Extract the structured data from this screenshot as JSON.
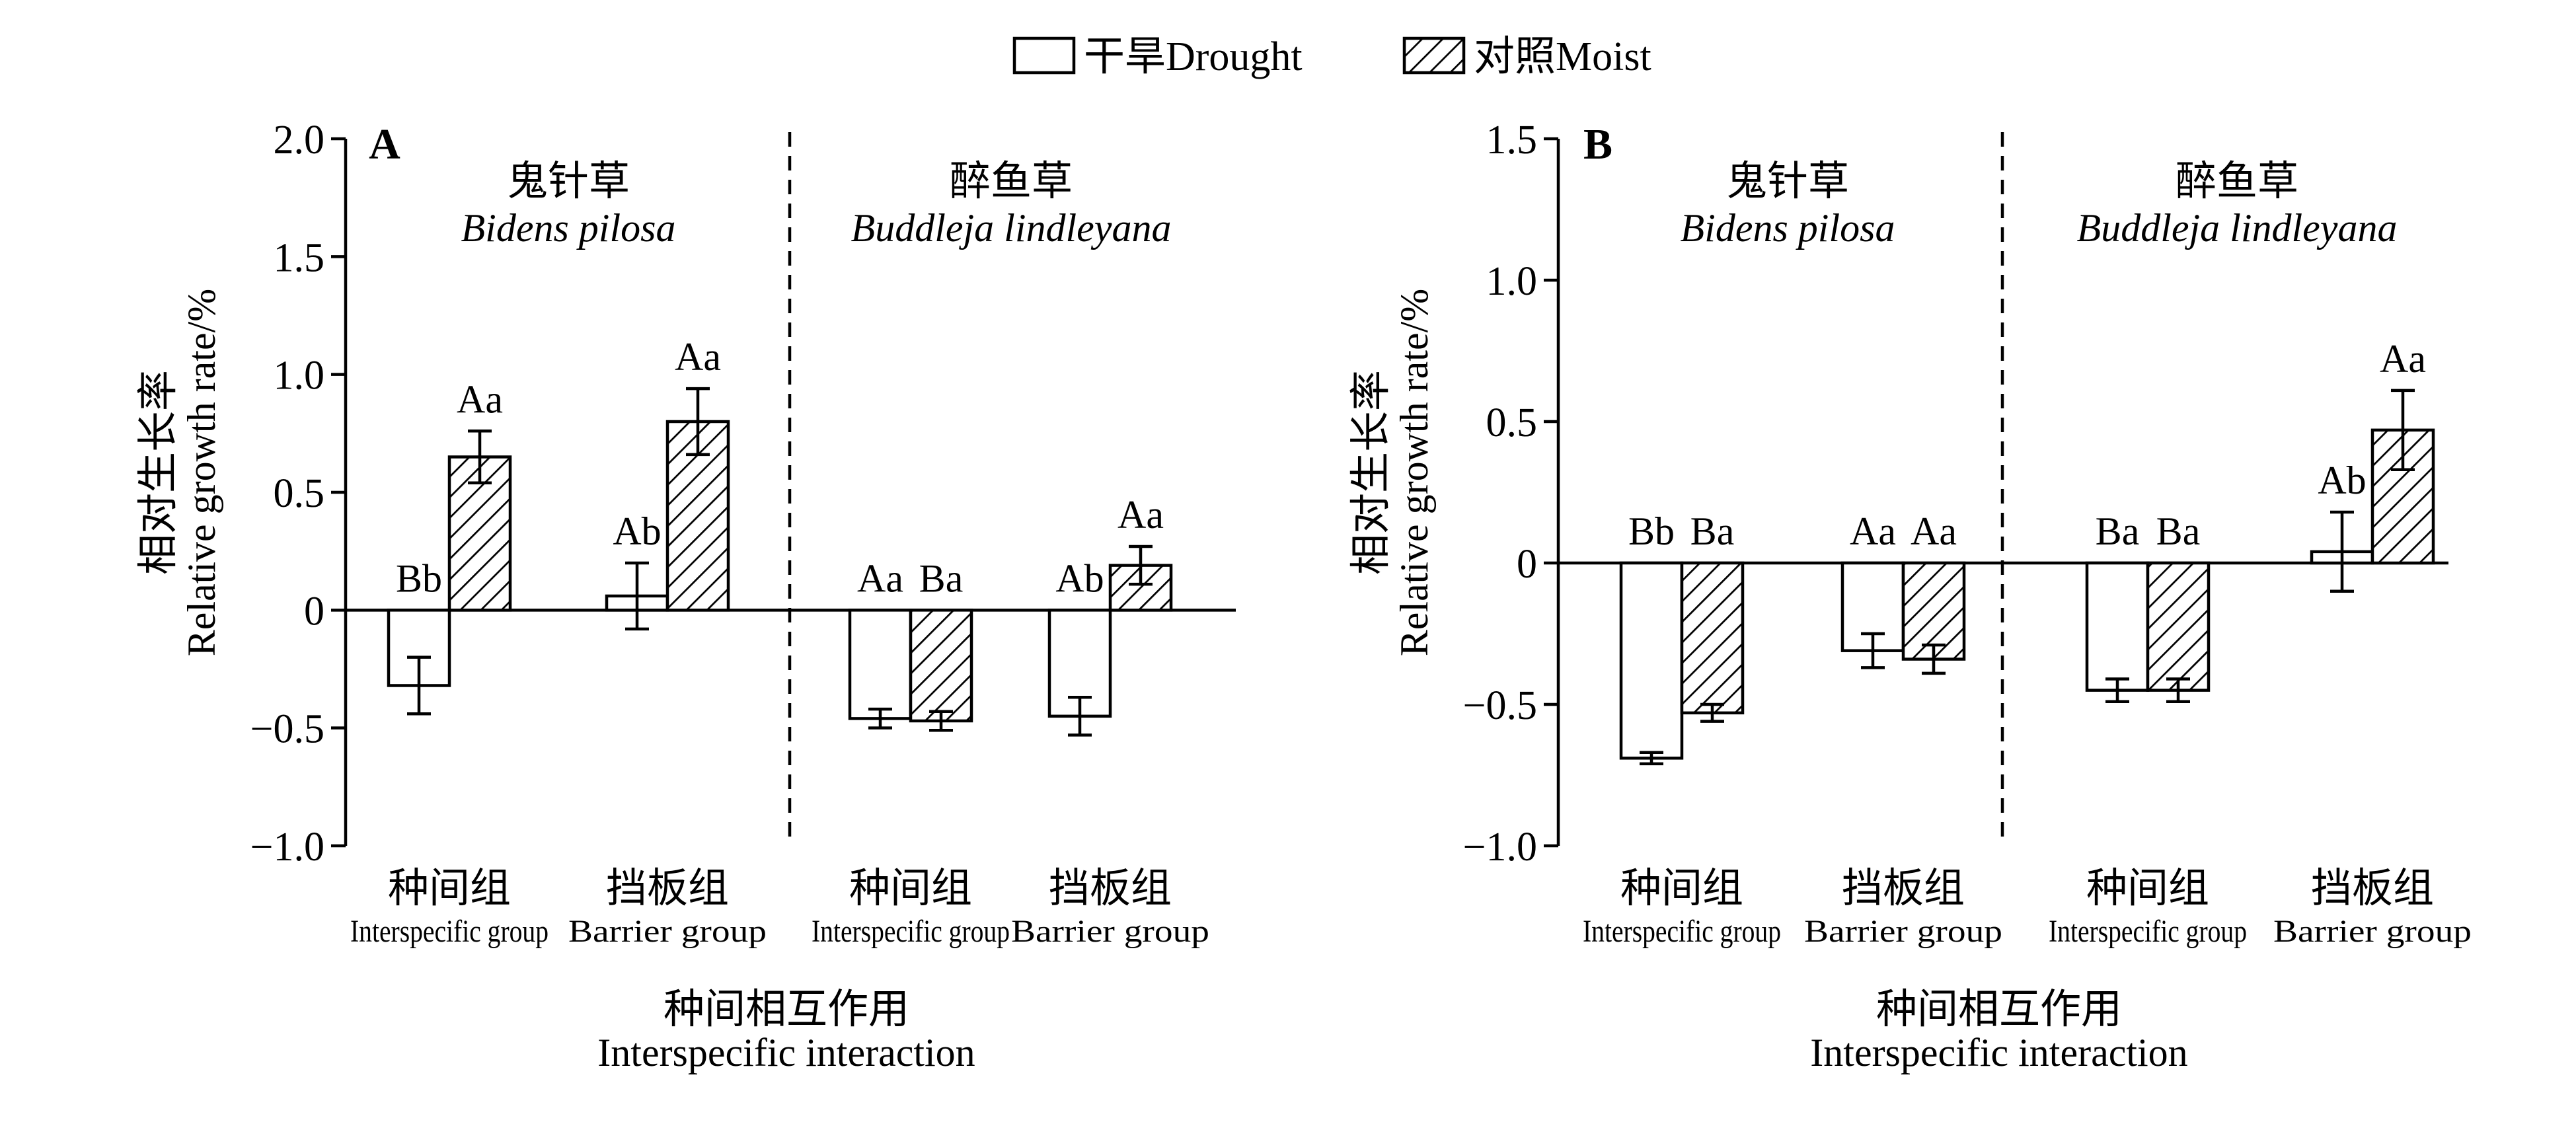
{
  "legend": {
    "items": [
      {
        "label": "干旱Drought",
        "style": "open"
      },
      {
        "label": "对照Moist",
        "style": "hatched"
      }
    ],
    "placement": "top-center"
  },
  "colors": {
    "ink": "#000000",
    "background": "#ffffff",
    "drought_fill": "#ffffff"
  },
  "chart_data": [
    {
      "type": "bar",
      "panel_label": "A",
      "ylabel_cn": "相对生长率",
      "ylabel_en": "Relative growth rate/%",
      "xlabel_cn": "种间相互作用",
      "xlabel_en": "Interspecific interaction",
      "ylim": [
        -1.0,
        2.0
      ],
      "yticks": [
        "−1.0",
        "−0.5",
        "0",
        "0.5",
        "1.0",
        "1.5",
        "2.0"
      ],
      "ytick_values": [
        -1.0,
        -0.5,
        0,
        0.5,
        1.0,
        1.5,
        2.0
      ],
      "species": [
        {
          "name_cn": "鬼针草",
          "name_en": "Bidens pilosa"
        },
        {
          "name_cn": "醉鱼草",
          "name_en": "Buddleja lindleyana"
        }
      ],
      "groups": [
        {
          "label_cn": "种间组",
          "label_en": "Interspecific group",
          "drought": {
            "value": -0.32,
            "error": 0.12,
            "letter": "Bb"
          },
          "moist": {
            "value": 0.65,
            "error": 0.11,
            "letter": "Aa"
          }
        },
        {
          "label_cn": "挡板组",
          "label_en": "Barrier group",
          "drought": {
            "value": 0.06,
            "error": 0.14,
            "letter": "Ab"
          },
          "moist": {
            "value": 0.8,
            "error": 0.14,
            "letter": "Aa"
          }
        },
        {
          "label_cn": "种间组",
          "label_en": "Interspecific group",
          "drought": {
            "value": -0.46,
            "error": 0.04,
            "letter": "Aa"
          },
          "moist": {
            "value": -0.47,
            "error": 0.04,
            "letter": "Ba"
          }
        },
        {
          "label_cn": "挡板组",
          "label_en": "Barrier group",
          "drought": {
            "value": -0.45,
            "error": 0.08,
            "letter": "Ab"
          },
          "moist": {
            "value": 0.19,
            "error": 0.08,
            "letter": "Aa"
          }
        }
      ]
    },
    {
      "type": "bar",
      "panel_label": "B",
      "ylabel_cn": "相对生长率",
      "ylabel_en": "Relative growth rate/%",
      "xlabel_cn": "种间相互作用",
      "xlabel_en": "Interspecific interaction",
      "ylim": [
        -1.0,
        1.5
      ],
      "yticks": [
        "−1.0",
        "−0.5",
        "0",
        "0.5",
        "1.0",
        "1.5"
      ],
      "ytick_values": [
        -1.0,
        -0.5,
        0,
        0.5,
        1.0,
        1.5
      ],
      "species": [
        {
          "name_cn": "鬼针草",
          "name_en": "Bidens pilosa"
        },
        {
          "name_cn": "醉鱼草",
          "name_en": "Buddleja lindleyana"
        }
      ],
      "groups": [
        {
          "label_cn": "种间组",
          "label_en": "Interspecific group",
          "drought": {
            "value": -0.69,
            "error": 0.02,
            "letter": "Bb"
          },
          "moist": {
            "value": -0.53,
            "error": 0.03,
            "letter": "Ba"
          }
        },
        {
          "label_cn": "挡板组",
          "label_en": "Barrier group",
          "drought": {
            "value": -0.31,
            "error": 0.06,
            "letter": "Aa"
          },
          "moist": {
            "value": -0.34,
            "error": 0.05,
            "letter": "Aa"
          }
        },
        {
          "label_cn": "种间组",
          "label_en": "Interspecific group",
          "drought": {
            "value": -0.45,
            "error": 0.04,
            "letter": "Ba"
          },
          "moist": {
            "value": -0.45,
            "error": 0.04,
            "letter": "Ba"
          }
        },
        {
          "label_cn": "挡板组",
          "label_en": "Barrier group",
          "drought": {
            "value": 0.04,
            "error": 0.14,
            "letter": "Ab"
          },
          "moist": {
            "value": 0.47,
            "error": 0.14,
            "letter": "Aa"
          }
        }
      ]
    }
  ]
}
